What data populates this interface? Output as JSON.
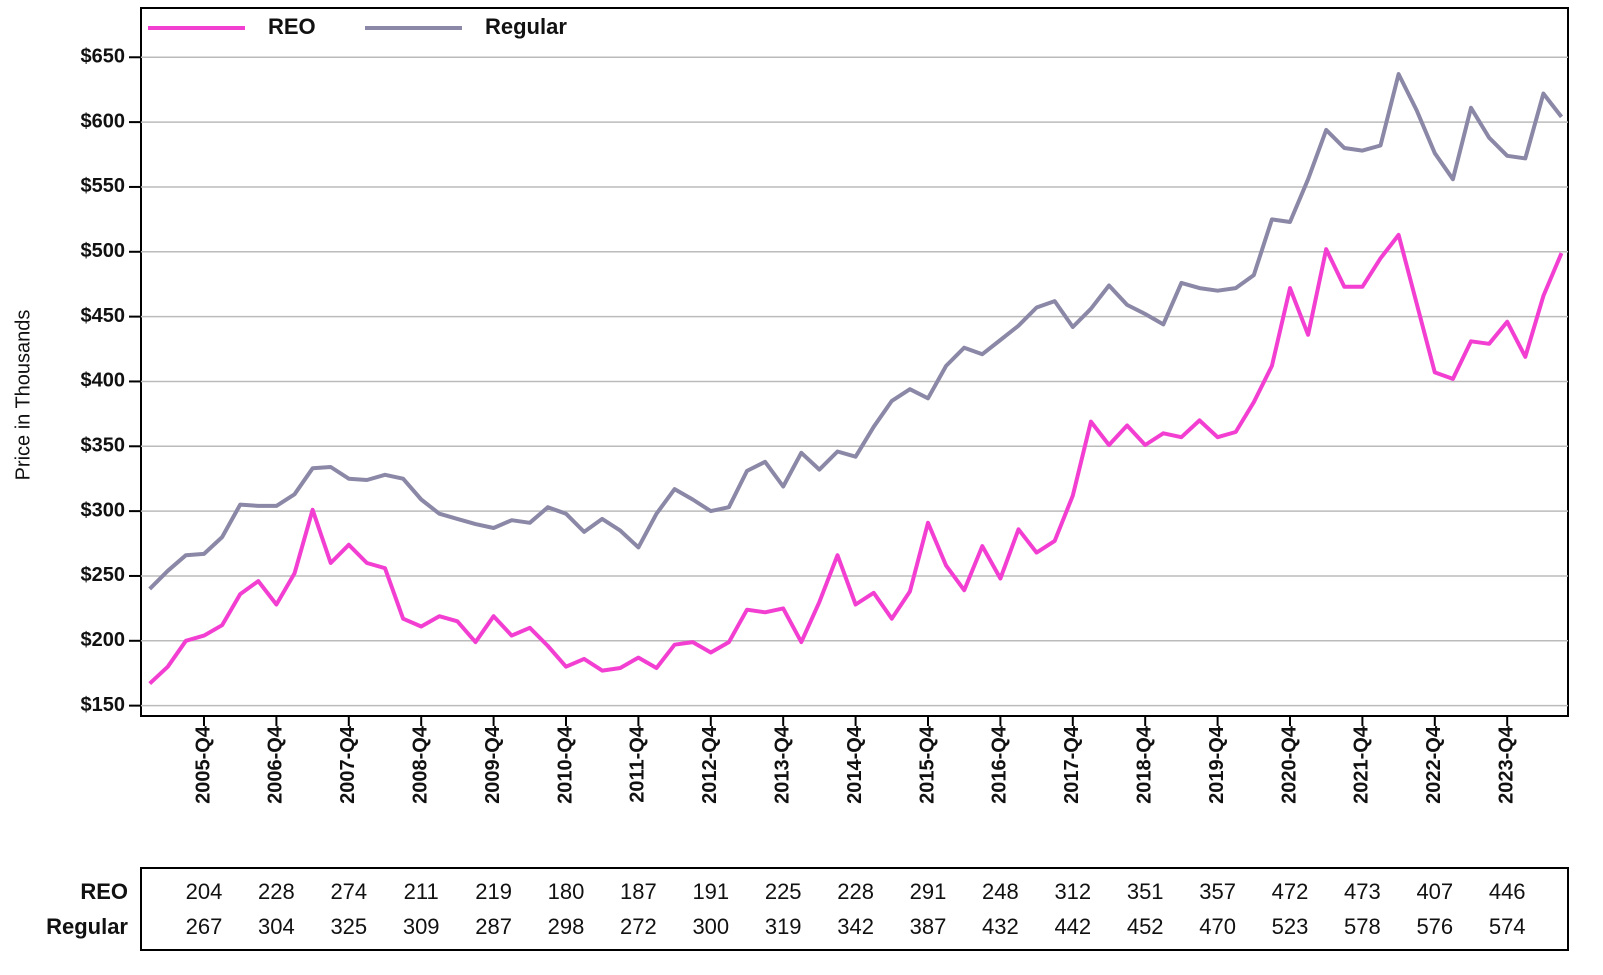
{
  "chart_data": {
    "type": "line",
    "y_label": "Price in Thousands",
    "categories": [
      null,
      null,
      null,
      "2005-Q4",
      null,
      null,
      null,
      "2006-Q4",
      null,
      null,
      null,
      "2007-Q4",
      null,
      null,
      null,
      "2008-Q4",
      null,
      null,
      null,
      "2009-Q4",
      null,
      null,
      null,
      "2010-Q4",
      null,
      null,
      null,
      "2011-Q4",
      null,
      null,
      null,
      "2012-Q4",
      null,
      null,
      null,
      "2013-Q4",
      null,
      null,
      null,
      "2014-Q4",
      null,
      null,
      null,
      "2015-Q4",
      null,
      null,
      null,
      "2016-Q4",
      null,
      null,
      null,
      "2017-Q4",
      null,
      null,
      null,
      "2018-Q4",
      null,
      null,
      null,
      "2019-Q4",
      null,
      null,
      null,
      "2020-Q4",
      null,
      null,
      null,
      "2021-Q4",
      null,
      null,
      null,
      "2022-Q4",
      null,
      null,
      null,
      "2023-Q4",
      null,
      null,
      null
    ],
    "series": [
      {
        "name": "REO",
        "color": "#f23fd2",
        "values": [
          167,
          180,
          200,
          204,
          212,
          236,
          246,
          228,
          252,
          301,
          260,
          274,
          260,
          256,
          217,
          211,
          219,
          215,
          199,
          219,
          204,
          210,
          196,
          180,
          186,
          177,
          179,
          187,
          179,
          197,
          199,
          191,
          199,
          224,
          222,
          225,
          199,
          230,
          266,
          228,
          237,
          217,
          238,
          291,
          258,
          239,
          273,
          248,
          286,
          268,
          277,
          312,
          369,
          351,
          366,
          351,
          360,
          357,
          370,
          357,
          361,
          384,
          412,
          472,
          436,
          502,
          473,
          473,
          495,
          513,
          460,
          407,
          402,
          431,
          429,
          446,
          419,
          466,
          499
        ]
      },
      {
        "name": "Regular",
        "color": "#8a88a6",
        "values": [
          240,
          254,
          266,
          267,
          280,
          305,
          304,
          304,
          313,
          333,
          334,
          325,
          324,
          328,
          325,
          309,
          298,
          294,
          290,
          287,
          293,
          291,
          303,
          298,
          284,
          294,
          285,
          272,
          298,
          317,
          309,
          300,
          303,
          331,
          338,
          319,
          345,
          332,
          346,
          342,
          365,
          385,
          394,
          387,
          412,
          426,
          421,
          432,
          443,
          457,
          462,
          442,
          456,
          474,
          459,
          452,
          444,
          476,
          472,
          470,
          472,
          482,
          525,
          523,
          556,
          594,
          580,
          578,
          582,
          637,
          609,
          576,
          556,
          611,
          588,
          574,
          572,
          622,
          604
        ]
      }
    ],
    "ylim": [
      142,
      688
    ],
    "yticks": [
      {
        "value": 150,
        "label": "$150"
      },
      {
        "value": 200,
        "label": "$200"
      },
      {
        "value": 250,
        "label": "$250"
      },
      {
        "value": 300,
        "label": "$300"
      },
      {
        "value": 350,
        "label": "$350"
      },
      {
        "value": 400,
        "label": "$400"
      },
      {
        "value": 450,
        "label": "$450"
      },
      {
        "value": 500,
        "label": "$500"
      },
      {
        "value": 550,
        "label": "$550"
      },
      {
        "value": 600,
        "label": "$600"
      },
      {
        "value": 650,
        "label": "$650"
      }
    ],
    "grid": true,
    "legend": "top-left"
  }
}
